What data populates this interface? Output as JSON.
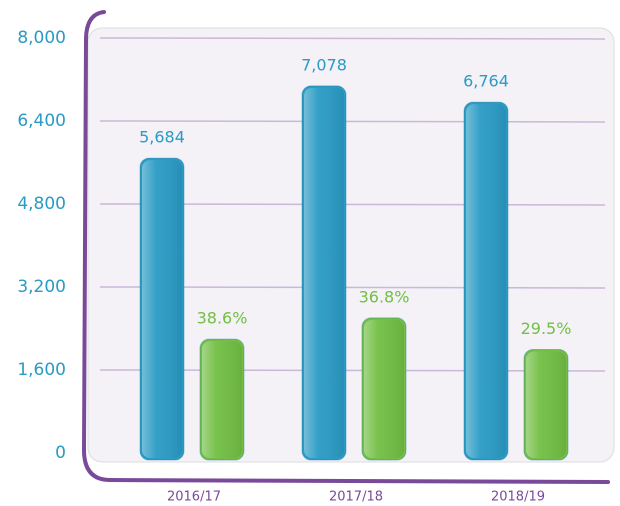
{
  "chart_data": {
    "type": "bar",
    "categories": [
      "2016/17",
      "2017/18",
      "2018/19"
    ],
    "series": [
      {
        "color": "#2a9bc4",
        "values": [
          5684,
          7078,
          6764
        ],
        "value_labels": [
          "5,684",
          "7,078",
          "6,764"
        ]
      },
      {
        "color": "#72bf44",
        "values": [
          38.6,
          36.8,
          29.5
        ],
        "value_labels": [
          "38.6%",
          "36.8%",
          "29.5%"
        ]
      }
    ],
    "ylim": [
      0,
      8000
    ],
    "yticks": [
      0,
      {
        "value": 1600,
        "label": "1,600"
      },
      {
        "value": 3200,
        "label": "3,200"
      },
      {
        "value": 4800,
        "label": "4,800"
      },
      {
        "value": 6400,
        "label": "6,400"
      },
      {
        "value": 8000,
        "label": "8,000"
      }
    ],
    "grid": true
  }
}
